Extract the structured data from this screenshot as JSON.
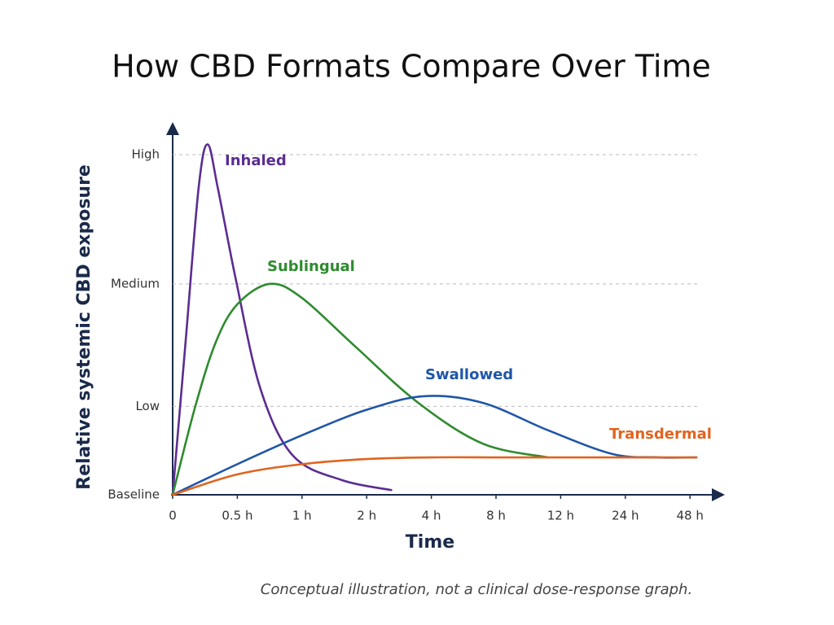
{
  "chart_data": {
    "type": "line",
    "title": "How CBD Formats Compare Over Time",
    "y_label": "Relative systemic CBD exposure",
    "x_label": "Time",
    "note": "Conceptual illustration, not a clinical dose-response graph.",
    "xlim": [
      0,
      8.4
    ],
    "xticks": [
      {
        "value": 0,
        "label": "0"
      },
      {
        "value": 1,
        "label": "0.5 h"
      },
      {
        "value": 2,
        "label": "1 h"
      },
      {
        "value": 3,
        "label": "2 h"
      },
      {
        "value": 4,
        "label": "4 h"
      },
      {
        "value": 5,
        "label": "8 h"
      },
      {
        "value": 6,
        "label": "12 h"
      },
      {
        "value": 7,
        "label": "24 h"
      },
      {
        "value": 8,
        "label": "48 h"
      }
    ],
    "ylim": [
      0,
      108
    ],
    "yticks": [
      {
        "value": 0,
        "label": "Baseline"
      },
      {
        "value": 26,
        "label": "Low"
      },
      {
        "value": 62,
        "label": "Medium"
      },
      {
        "value": 100,
        "label": "High"
      }
    ],
    "grid": true,
    "series": [
      {
        "name": "Inhaled",
        "color": "#5b2d91",
        "x": [
          0,
          0.2,
          0.4,
          0.54,
          0.7,
          0.98,
          1.36,
          1.86,
          2.62,
          3.38
        ],
        "values": [
          0,
          45,
          90,
          103,
          90,
          63,
          31,
          11.5,
          4.3,
          1.4
        ]
      },
      {
        "name": "Sublingual",
        "color": "#2e8b2e",
        "x": [
          0,
          0.35,
          0.67,
          1.0,
          1.5,
          1.99,
          2.8,
          3.8,
          4.8,
          5.8
        ],
        "values": [
          0,
          26,
          45,
          56,
          62,
          58,
          44,
          27,
          15,
          11
        ]
      },
      {
        "name": "Swallowed",
        "color": "#1f56a8",
        "x": [
          0,
          1.0,
          2.0,
          3.0,
          3.9,
          4.8,
          5.8,
          6.8,
          7.5,
          8.1
        ],
        "values": [
          0,
          9,
          17.5,
          25,
          29,
          27,
          19,
          12,
          11,
          11
        ]
      },
      {
        "name": "Transdermal",
        "color": "#e0641f",
        "x": [
          0,
          1,
          2,
          3,
          4,
          5,
          6,
          7,
          8.1
        ],
        "values": [
          0,
          6,
          9,
          10.5,
          11,
          11,
          11,
          11,
          11
        ]
      }
    ]
  }
}
